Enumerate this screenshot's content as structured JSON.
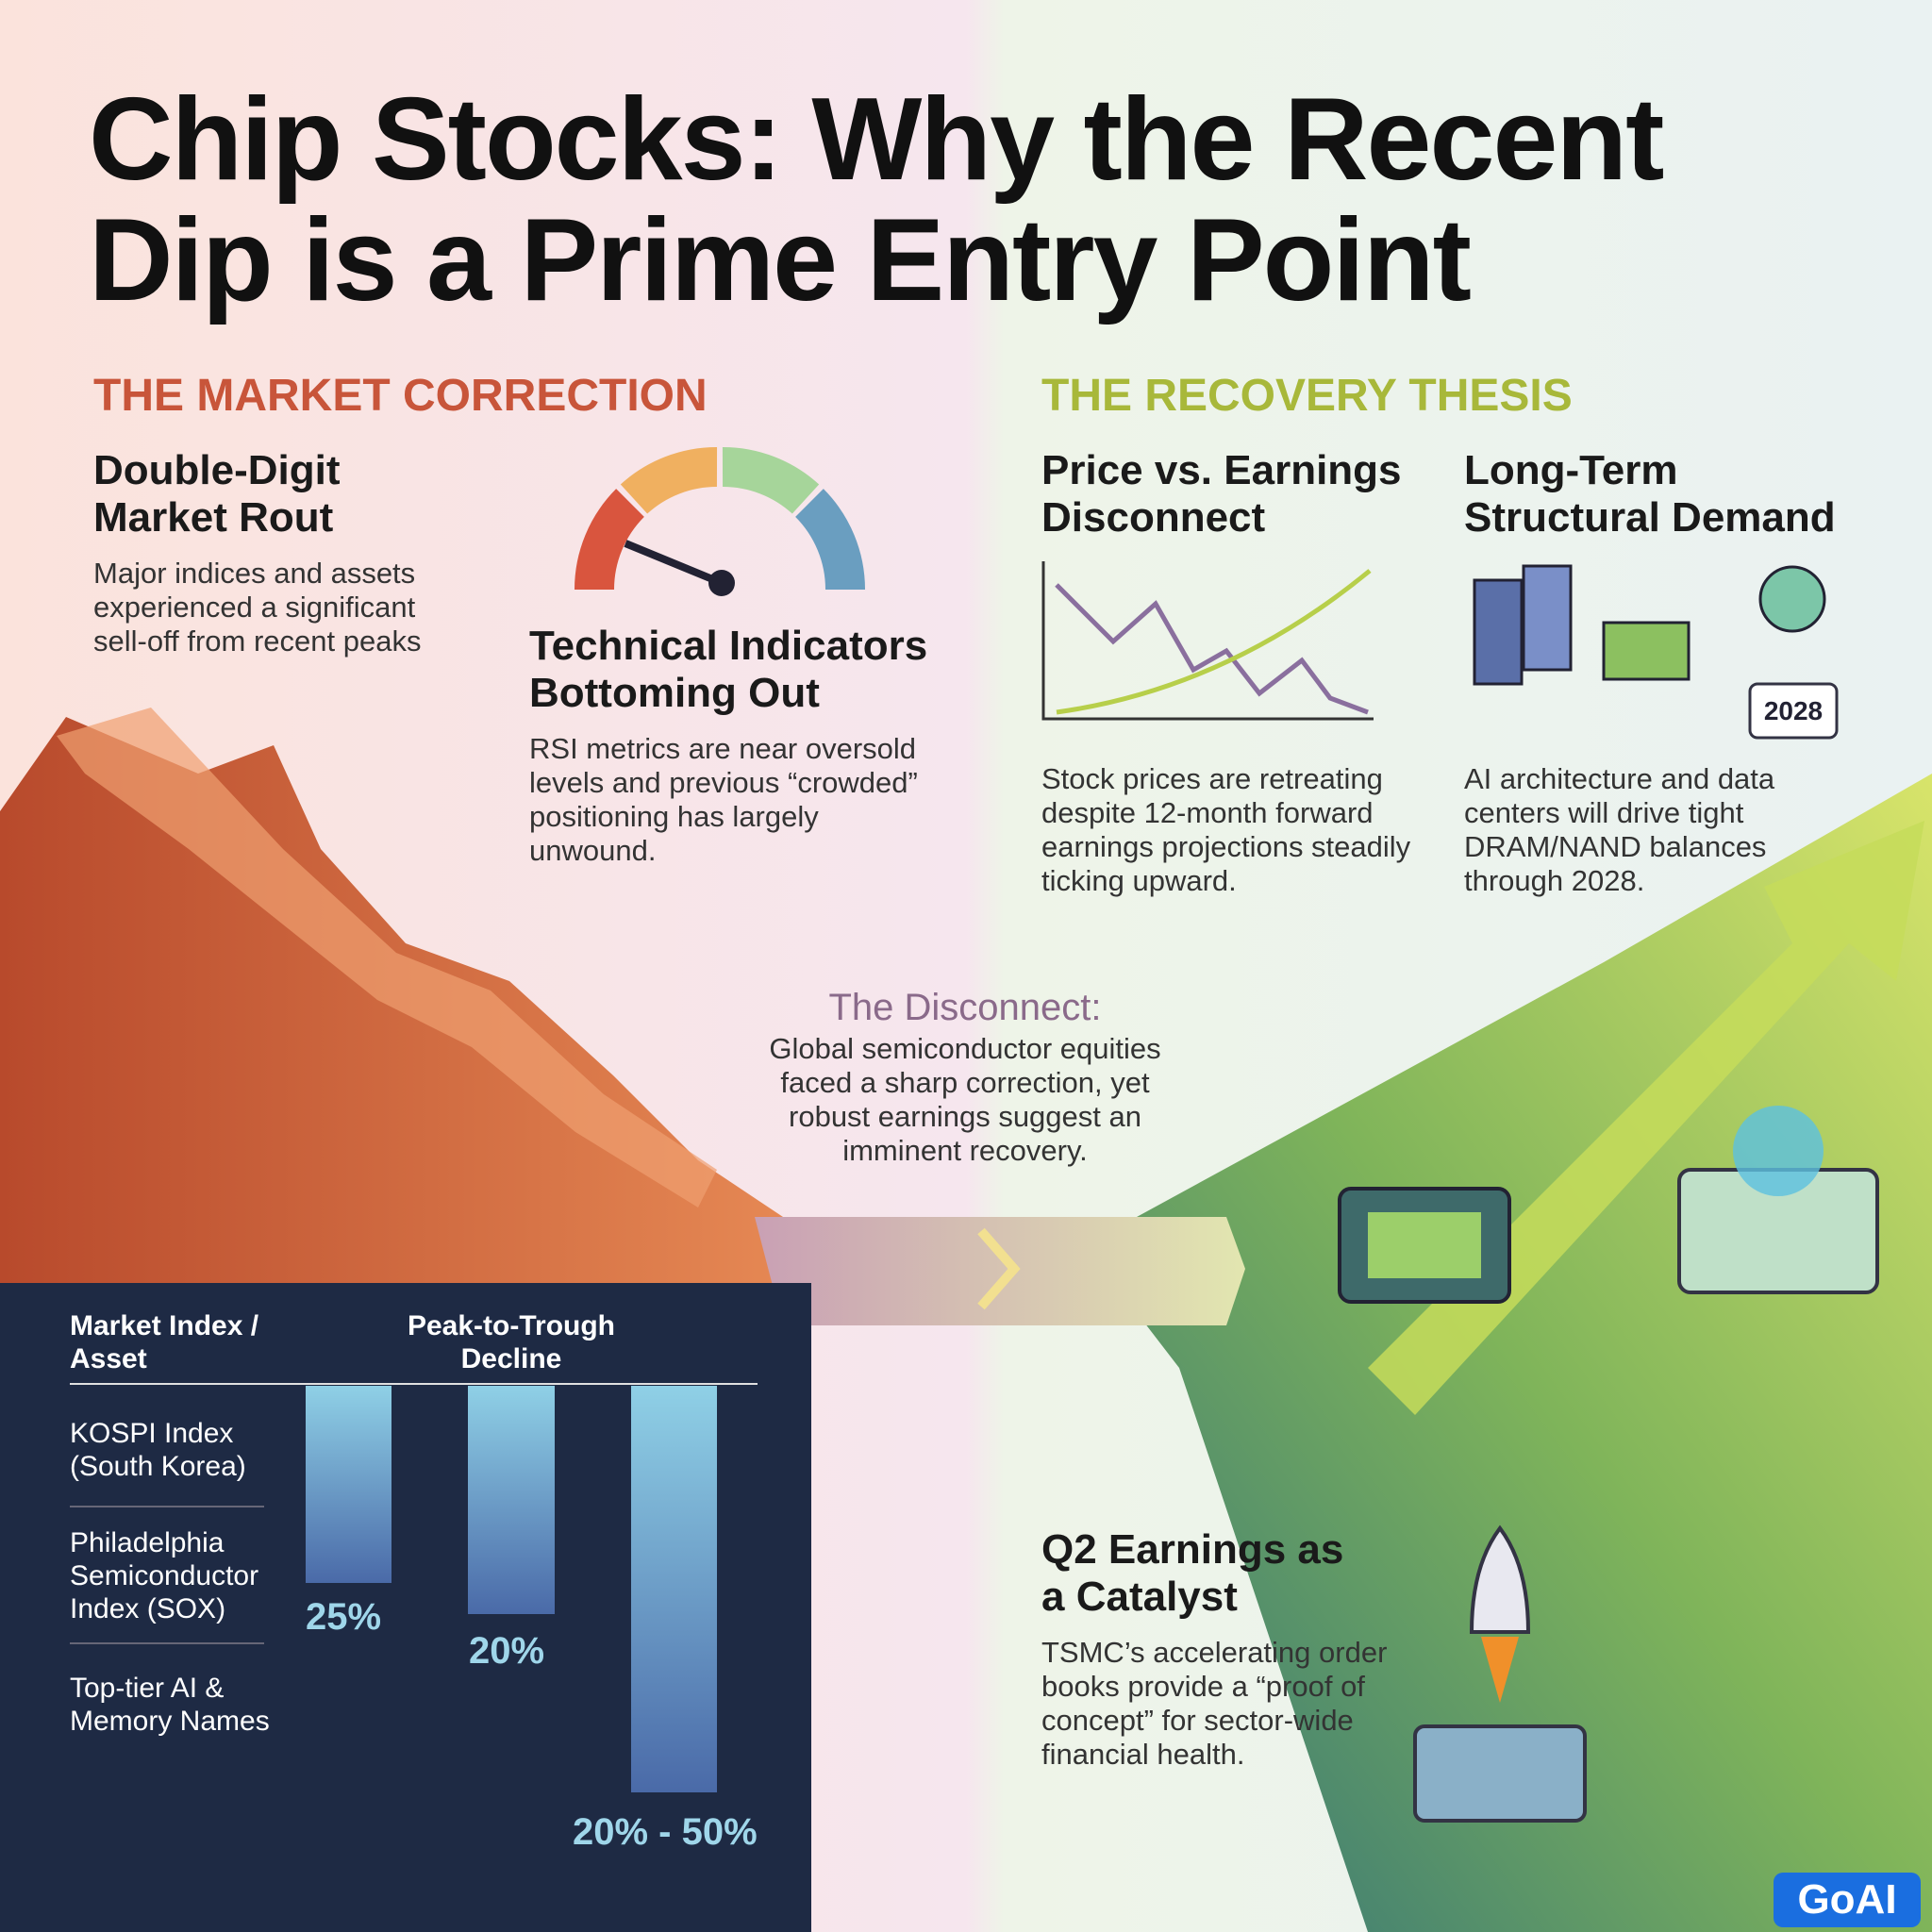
{
  "header": {
    "title": "Chip Stocks: Why the Recent Dip is a Prime Entry Point"
  },
  "correction": {
    "heading": "THE MARKET CORRECTION",
    "rout": {
      "title": "Double-Digit Market Rout",
      "text": "Major indices and assets experienced a significant sell-off from recent peaks"
    },
    "indicators": {
      "title": "Technical Indicators Bottoming Out",
      "text": "RSI metrics are near oversold levels and previous “crowded” positioning has largely unwound."
    }
  },
  "recovery": {
    "heading": "THE RECOVERY THESIS",
    "disconnect": {
      "title": "Price vs. Earnings Disconnect",
      "text": "Stock prices are retreating despite 12-month forward earnings projections steadily ticking upward."
    },
    "demand": {
      "title": "Long-Term Structural Demand",
      "text": "AI architecture and data centers will drive tight DRAM/NAND balances through 2028.",
      "icon_label": "2028"
    },
    "catalyst": {
      "title": "Q2 Earnings as a Catalyst",
      "text": "TSMC’s accelerating order books provide a “proof of concept” for sector-wide financial health."
    }
  },
  "callout": {
    "title": "The Disconnect:",
    "text": "Global semiconductor equities faced a sharp correction, yet robust earnings suggest an imminent recovery."
  },
  "table": {
    "headers": [
      "Market Index / Asset",
      "Peak-to-Trough Decline"
    ],
    "rows": [
      [
        "KOSPI Index (South Korea)",
        "25%"
      ],
      [
        "Philadelphia Semiconductor Index (SOX)",
        "20%"
      ],
      [
        "Top-tier AI & Memory Names",
        "20% - 50%"
      ]
    ]
  },
  "logo": "GoAI"
}
